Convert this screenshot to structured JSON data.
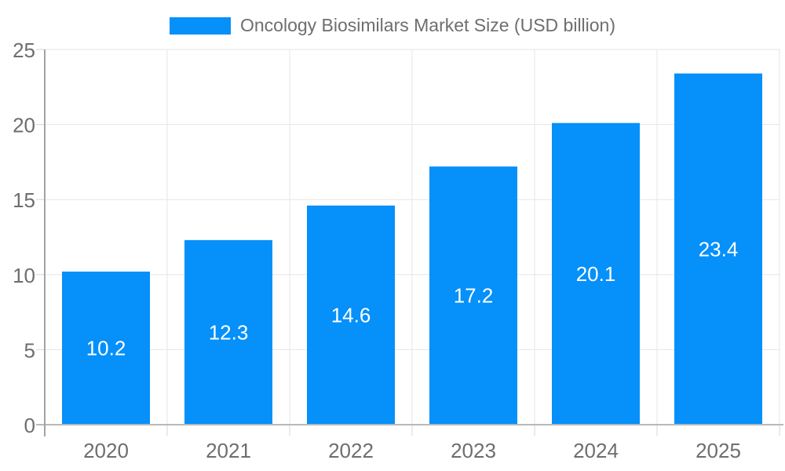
{
  "chart_data": {
    "type": "bar",
    "title": "Oncology Biosimilars Market Size (USD billion)",
    "categories": [
      "2020",
      "2021",
      "2022",
      "2023",
      "2024",
      "2025"
    ],
    "series": [
      {
        "name": "Oncology Biosimilars Market Size (USD billion)",
        "values": [
          10.2,
          12.3,
          14.6,
          17.2,
          20.1,
          23.4
        ]
      }
    ],
    "value_labels": [
      "10.2",
      "12.3",
      "14.6",
      "17.2",
      "20.1",
      "23.4"
    ],
    "xlabel": "",
    "ylabel": "",
    "ylim": [
      0,
      25
    ],
    "yticks": [
      0,
      5,
      10,
      15,
      20,
      25
    ],
    "legend_position": "top-center",
    "grid": true,
    "colors": {
      "bar": "#0590FA",
      "value_label": "#ffffff",
      "tick_label": "#6e6e6e",
      "legend_text": "#6e6e6e",
      "gridline": "#e6e6e6",
      "boundary_tick": "#d6d6d6",
      "y_axis": "#a3a3a3",
      "x_axis": "#b9b9b9",
      "background": "#ffffff"
    }
  }
}
